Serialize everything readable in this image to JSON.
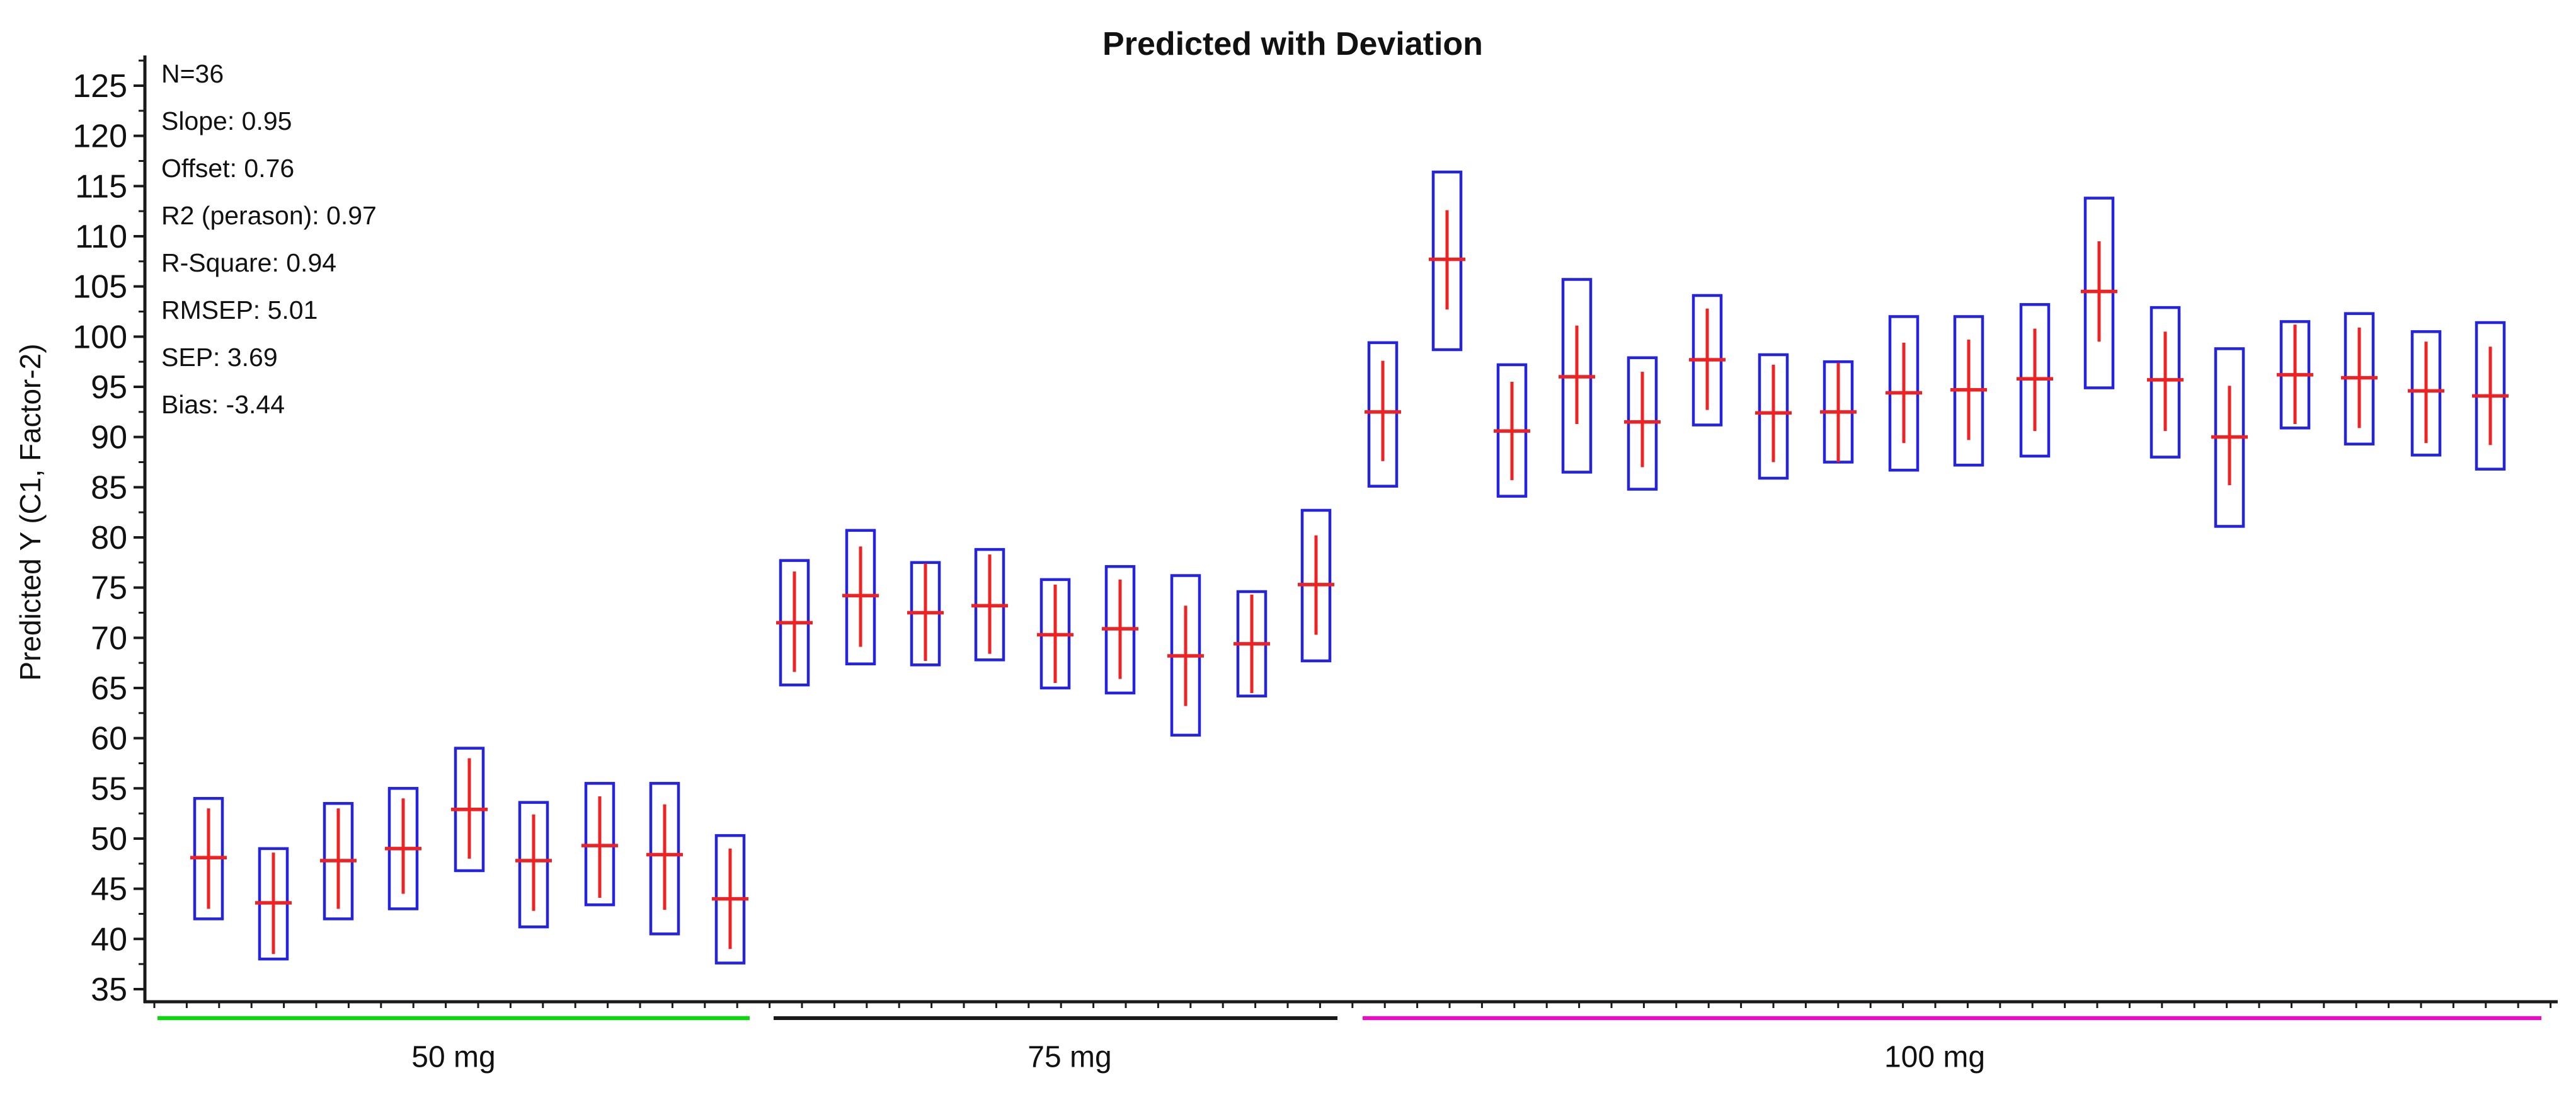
{
  "chart_data": {
    "type": "box",
    "title": "Predicted with Deviation",
    "ylabel": "Predicted Y (C1, Factor-2)",
    "xlabel": "",
    "ylim": [
      35,
      125
    ],
    "ytick_step": 5,
    "ytick_minor_step": 2.5,
    "ytick_labels": [
      125,
      120,
      115,
      110,
      105,
      100,
      95,
      90,
      85,
      80,
      75,
      70,
      65,
      60,
      55,
      50,
      45,
      40,
      35
    ],
    "grid": "off",
    "legend": "none",
    "stats_annotation": [
      "N=36",
      "Slope: 0.95",
      "Offset: 0.76",
      "R2 (perason): 0.97",
      "R-Square: 0.94",
      "RMSEP: 5.01",
      "SEP: 3.69",
      "Bias: -3.44"
    ],
    "colors": {
      "box_stroke": "#2323e0",
      "deviation": "#ee2222",
      "axis": "#1a1a1a",
      "green_underline": "#00e000",
      "black_underline": "#1a1a1a",
      "magenta_underline": "#ff00d0"
    },
    "groups": [
      {
        "label": "50 mg",
        "underline_color": "#00e000",
        "underline_x": [
          250,
          1190
        ],
        "label_x": 720,
        "boxes": [
          {
            "x": 331,
            "box_low": 42.0,
            "box_high": 54.0,
            "center": 48.1,
            "dev_low": 43.0,
            "dev_high": 53.0
          },
          {
            "x": 434,
            "box_low": 38.0,
            "box_high": 49.0,
            "center": 43.6,
            "dev_low": 38.5,
            "dev_high": 48.6
          },
          {
            "x": 537,
            "box_low": 42.0,
            "box_high": 53.5,
            "center": 47.8,
            "dev_low": 43.0,
            "dev_high": 53.0
          },
          {
            "x": 640,
            "box_low": 43.0,
            "box_high": 55.0,
            "center": 49.0,
            "dev_low": 44.5,
            "dev_high": 54.0
          },
          {
            "x": 745,
            "box_low": 46.8,
            "box_high": 59.0,
            "center": 52.9,
            "dev_low": 48.0,
            "dev_high": 58.0
          },
          {
            "x": 847,
            "box_low": 41.2,
            "box_high": 53.6,
            "center": 47.8,
            "dev_low": 42.8,
            "dev_high": 52.4
          },
          {
            "x": 952,
            "box_low": 43.4,
            "box_high": 55.5,
            "center": 49.3,
            "dev_low": 44.1,
            "dev_high": 54.2
          },
          {
            "x": 1055,
            "box_low": 40.5,
            "box_high": 55.5,
            "center": 48.4,
            "dev_low": 42.9,
            "dev_high": 53.4
          },
          {
            "x": 1159,
            "box_low": 37.6,
            "box_high": 50.3,
            "center": 44.0,
            "dev_low": 39.0,
            "dev_high": 49.0
          }
        ]
      },
      {
        "label": "75 mg",
        "underline_color": "#1a1a1a",
        "underline_x": [
          1228,
          2123
        ],
        "label_x": 1698,
        "boxes": [
          {
            "x": 1261,
            "box_low": 65.3,
            "box_high": 77.7,
            "center": 71.5,
            "dev_low": 66.6,
            "dev_high": 76.6
          },
          {
            "x": 1366,
            "box_low": 67.4,
            "box_high": 80.7,
            "center": 74.2,
            "dev_low": 69.1,
            "dev_high": 79.1
          },
          {
            "x": 1469,
            "box_low": 67.3,
            "box_high": 77.5,
            "center": 72.5,
            "dev_low": 67.7,
            "dev_high": 77.4
          },
          {
            "x": 1571,
            "box_low": 67.8,
            "box_high": 78.8,
            "center": 73.2,
            "dev_low": 68.4,
            "dev_high": 78.3
          },
          {
            "x": 1675,
            "box_low": 65.0,
            "box_high": 75.8,
            "center": 70.3,
            "dev_low": 65.5,
            "dev_high": 75.3
          },
          {
            "x": 1778,
            "box_low": 64.5,
            "box_high": 77.1,
            "center": 70.9,
            "dev_low": 65.9,
            "dev_high": 75.8
          },
          {
            "x": 1882,
            "box_low": 60.3,
            "box_high": 76.2,
            "center": 68.2,
            "dev_low": 63.2,
            "dev_high": 73.2
          },
          {
            "x": 1987,
            "box_low": 64.2,
            "box_high": 74.6,
            "center": 69.4,
            "dev_low": 64.5,
            "dev_high": 74.3
          },
          {
            "x": 2089,
            "box_low": 67.7,
            "box_high": 82.7,
            "center": 75.3,
            "dev_low": 70.3,
            "dev_high": 80.2
          }
        ]
      },
      {
        "label": "100 mg",
        "underline_color": "#ff00d0",
        "underline_x": [
          2163,
          4034
        ],
        "label_x": 3071,
        "boxes": [
          {
            "x": 2195,
            "box_low": 85.1,
            "box_high": 99.4,
            "center": 92.5,
            "dev_low": 87.6,
            "dev_high": 97.6
          },
          {
            "x": 2297,
            "box_low": 98.7,
            "box_high": 116.4,
            "center": 107.7,
            "dev_low": 102.7,
            "dev_high": 112.6
          },
          {
            "x": 2400,
            "box_low": 84.1,
            "box_high": 97.2,
            "center": 90.6,
            "dev_low": 85.7,
            "dev_high": 95.5
          },
          {
            "x": 2503,
            "box_low": 86.5,
            "box_high": 105.7,
            "center": 96.0,
            "dev_low": 91.3,
            "dev_high": 101.1
          },
          {
            "x": 2607,
            "box_low": 84.8,
            "box_high": 97.9,
            "center": 91.5,
            "dev_low": 87.0,
            "dev_high": 96.5
          },
          {
            "x": 2710,
            "box_low": 91.2,
            "box_high": 104.1,
            "center": 97.7,
            "dev_low": 92.7,
            "dev_high": 102.8
          },
          {
            "x": 2815,
            "box_low": 85.9,
            "box_high": 98.2,
            "center": 92.4,
            "dev_low": 87.5,
            "dev_high": 97.2
          },
          {
            "x": 2918,
            "box_low": 87.5,
            "box_high": 97.5,
            "center": 92.5,
            "dev_low": 87.5,
            "dev_high": 97.4
          },
          {
            "x": 3022,
            "box_low": 86.7,
            "box_high": 102.0,
            "center": 94.4,
            "dev_low": 89.4,
            "dev_high": 99.4
          },
          {
            "x": 3125,
            "box_low": 87.2,
            "box_high": 102.0,
            "center": 94.7,
            "dev_low": 89.7,
            "dev_high": 99.7
          },
          {
            "x": 3230,
            "box_low": 88.1,
            "box_high": 103.2,
            "center": 95.8,
            "dev_low": 90.6,
            "dev_high": 100.8
          },
          {
            "x": 3332,
            "box_low": 94.9,
            "box_high": 113.8,
            "center": 104.5,
            "dev_low": 99.5,
            "dev_high": 109.5
          },
          {
            "x": 3437,
            "box_low": 88.0,
            "box_high": 102.9,
            "center": 95.7,
            "dev_low": 90.6,
            "dev_high": 100.5
          },
          {
            "x": 3539,
            "box_low": 81.1,
            "box_high": 98.8,
            "center": 90.0,
            "dev_low": 85.2,
            "dev_high": 95.1
          },
          {
            "x": 3643,
            "box_low": 90.9,
            "box_high": 101.5,
            "center": 96.2,
            "dev_low": 91.3,
            "dev_high": 101.2
          },
          {
            "x": 3745,
            "box_low": 89.3,
            "box_high": 102.3,
            "center": 95.9,
            "dev_low": 90.9,
            "dev_high": 100.9
          },
          {
            "x": 3851,
            "box_low": 88.2,
            "box_high": 100.5,
            "center": 94.6,
            "dev_low": 89.4,
            "dev_high": 99.5
          },
          {
            "x": 3953,
            "box_low": 86.8,
            "box_high": 101.4,
            "center": 94.1,
            "dev_low": 89.2,
            "dev_high": 99.0
          }
        ]
      }
    ]
  }
}
